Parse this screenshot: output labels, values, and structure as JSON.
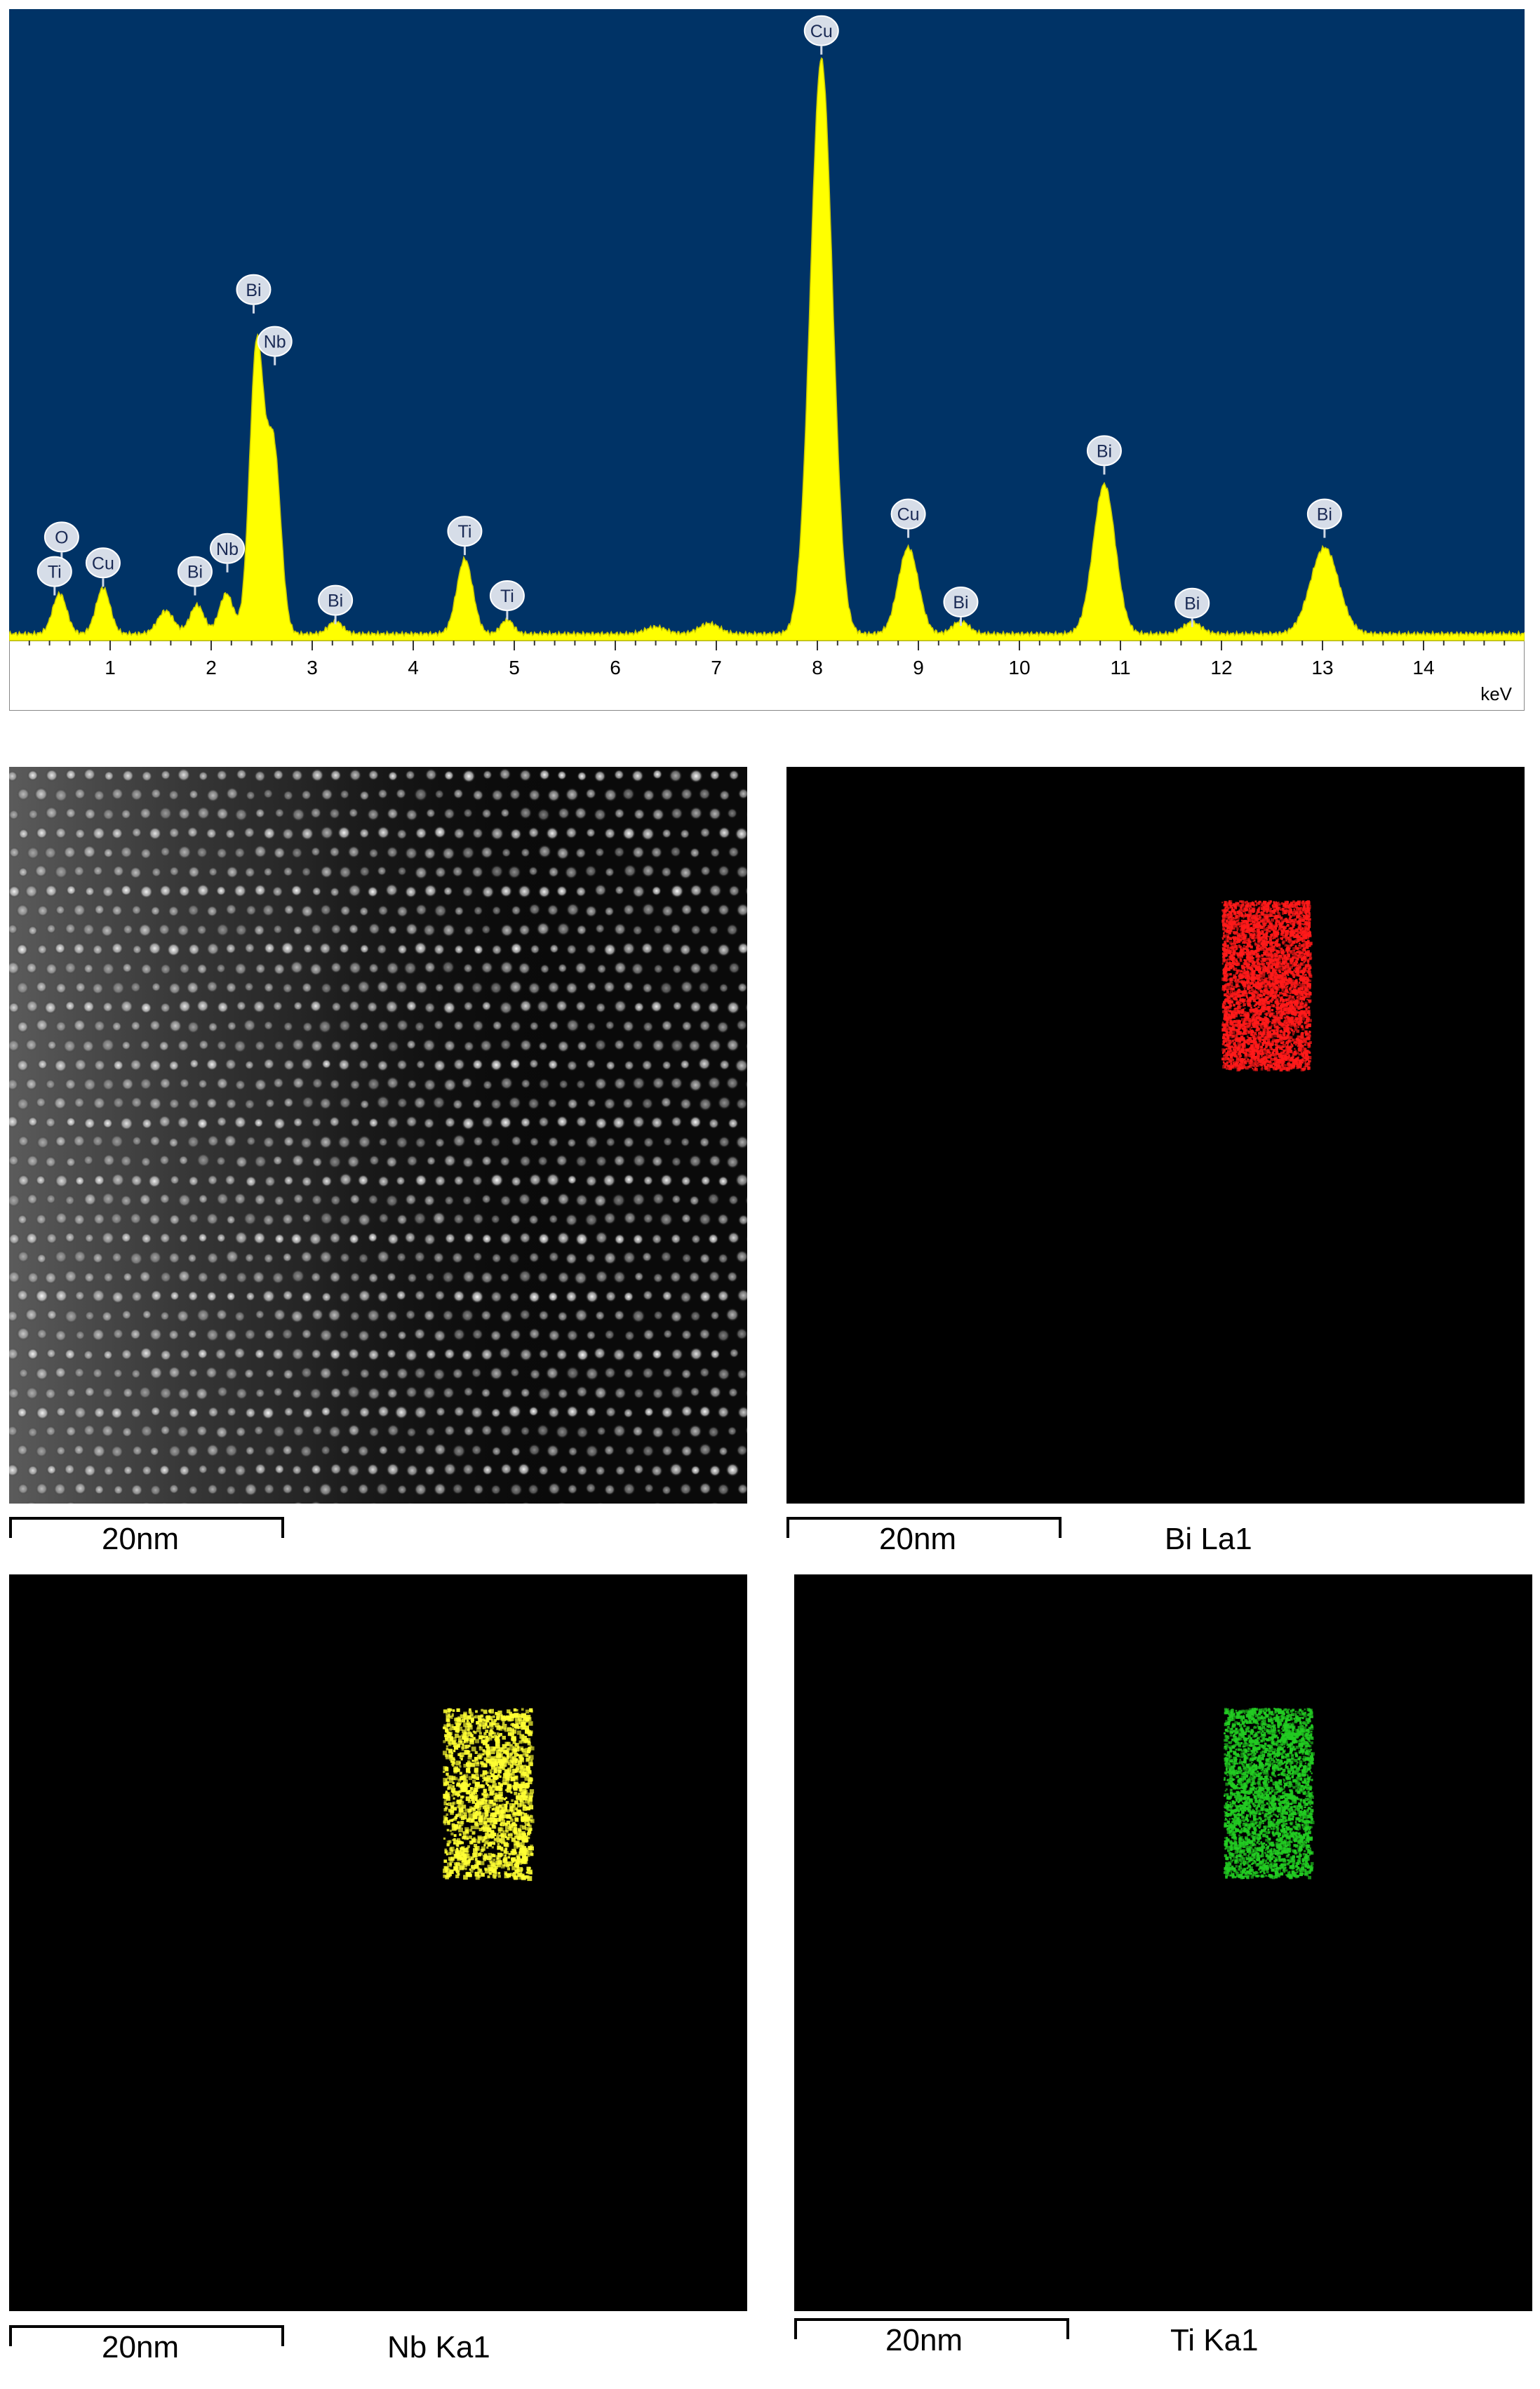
{
  "chart_data": {
    "type": "area",
    "xlabel": "keV",
    "xlim": [
      0,
      15
    ],
    "ylim": [
      0,
      1
    ],
    "x_ticks": [
      1,
      2,
      3,
      4,
      5,
      6,
      7,
      8,
      9,
      10,
      11,
      12,
      13,
      14
    ],
    "series_color": "#ffff00",
    "background_color": "#003366",
    "peaks": [
      {
        "x": 0.5,
        "y": 0.07,
        "w": 0.07
      },
      {
        "x": 0.93,
        "y": 0.08,
        "w": 0.07
      },
      {
        "x": 1.55,
        "y": 0.04,
        "w": 0.08
      },
      {
        "x": 1.86,
        "y": 0.05,
        "w": 0.07
      },
      {
        "x": 2.15,
        "y": 0.07,
        "w": 0.07
      },
      {
        "x": 2.45,
        "y": 0.5,
        "w": 0.07
      },
      {
        "x": 2.62,
        "y": 0.32,
        "w": 0.07
      },
      {
        "x": 3.23,
        "y": 0.022,
        "w": 0.07
      },
      {
        "x": 4.51,
        "y": 0.13,
        "w": 0.08
      },
      {
        "x": 4.93,
        "y": 0.025,
        "w": 0.06
      },
      {
        "x": 6.4,
        "y": 0.012,
        "w": 0.1
      },
      {
        "x": 6.93,
        "y": 0.018,
        "w": 0.1
      },
      {
        "x": 8.04,
        "y": 1.0,
        "w": 0.11
      },
      {
        "x": 8.9,
        "y": 0.15,
        "w": 0.1
      },
      {
        "x": 9.42,
        "y": 0.022,
        "w": 0.08
      },
      {
        "x": 10.84,
        "y": 0.26,
        "w": 0.11
      },
      {
        "x": 11.71,
        "y": 0.02,
        "w": 0.09
      },
      {
        "x": 13.02,
        "y": 0.15,
        "w": 0.14
      }
    ],
    "annotations": [
      {
        "label": "O",
        "x": 0.52,
        "y": 0.18
      },
      {
        "label": "Ti",
        "x": 0.45,
        "y": 0.12
      },
      {
        "label": "Cu",
        "x": 0.93,
        "y": 0.135
      },
      {
        "label": "Bi",
        "x": 1.84,
        "y": 0.12
      },
      {
        "label": "Nb",
        "x": 2.16,
        "y": 0.16
      },
      {
        "label": "Bi",
        "x": 2.42,
        "y": 0.61
      },
      {
        "label": "Nb",
        "x": 2.63,
        "y": 0.52
      },
      {
        "label": "Bi",
        "x": 3.23,
        "y": 0.07
      },
      {
        "label": "Ti",
        "x": 4.51,
        "y": 0.19
      },
      {
        "label": "Ti",
        "x": 4.93,
        "y": 0.078
      },
      {
        "label": "Cu",
        "x": 8.04,
        "y": 1.06
      },
      {
        "label": "Cu",
        "x": 8.9,
        "y": 0.22
      },
      {
        "label": "Bi",
        "x": 9.42,
        "y": 0.067
      },
      {
        "label": "Bi",
        "x": 10.84,
        "y": 0.33
      },
      {
        "label": "Bi",
        "x": 11.71,
        "y": 0.065
      },
      {
        "label": "Bi",
        "x": 13.02,
        "y": 0.22
      }
    ]
  },
  "maps": [
    {
      "label": "",
      "scale_text": "20nm",
      "image": "haadf-stem-lattice"
    },
    {
      "label": "Bi La1",
      "scale_text": "20nm",
      "color": "#ff1a1a"
    },
    {
      "label": "Nb Ka1",
      "scale_text": "20nm",
      "color": "#ffff33"
    },
    {
      "label": "Ti Ka1",
      "scale_text": "20nm",
      "color": "#22cc22"
    }
  ]
}
